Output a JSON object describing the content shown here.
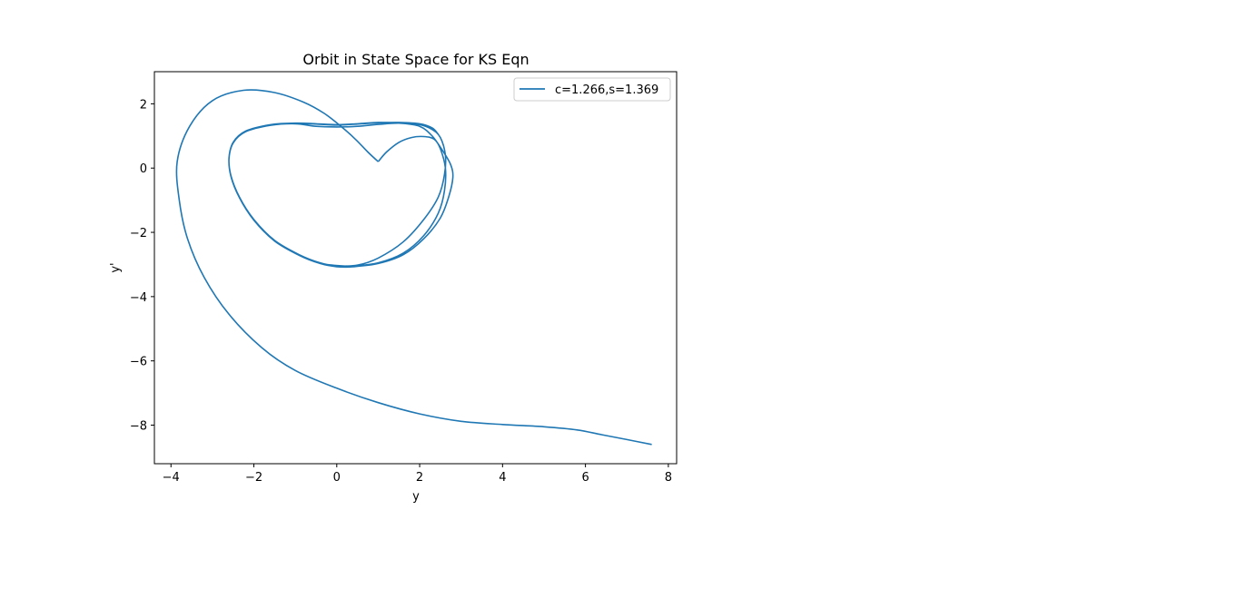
{
  "chart_data": {
    "type": "line",
    "title": "Orbit in State Space for KS Eqn",
    "xlabel": "y",
    "ylabel": "y'",
    "xlim": [
      -4.4,
      8.2
    ],
    "ylim": [
      -9.2,
      3.0
    ],
    "xticks": [
      -4,
      -2,
      0,
      2,
      4,
      6,
      8
    ],
    "yticks": [
      -8,
      -6,
      -4,
      -2,
      0,
      2
    ],
    "xtick_labels": [
      "−4",
      "−2",
      "0",
      "2",
      "4",
      "6",
      "8"
    ],
    "ytick_labels": [
      "−8",
      "−6",
      "−4",
      "−2",
      "0",
      "2"
    ],
    "grid": false,
    "legend_position": "top-right",
    "series": [
      {
        "name": "c=1.266,s=1.369",
        "color": "#1f77b4",
        "x": [
          1.0,
          0.75,
          0.45,
          0.1,
          -0.3,
          -0.8,
          -1.5,
          -2.25,
          -3.0,
          -3.55,
          -3.85,
          -3.8,
          -3.6,
          -3.2,
          -2.6,
          -1.8,
          -1.0,
          0.0,
          1.0,
          2.0,
          3.0,
          4.0,
          5.0,
          5.8,
          6.4,
          7.0,
          7.6
        ],
        "y": [
          0.2,
          0.5,
          0.9,
          1.3,
          1.7,
          2.05,
          2.35,
          2.42,
          2.1,
          1.3,
          0.2,
          -1.0,
          -2.2,
          -3.4,
          -4.55,
          -5.6,
          -6.3,
          -6.85,
          -7.3,
          -7.65,
          -7.88,
          -7.98,
          -8.05,
          -8.15,
          -8.3,
          -8.45,
          -8.6
        ]
      },
      {
        "name": "",
        "color": "#1f77b4",
        "x": [
          1.0,
          1.2,
          1.5,
          1.8,
          2.1,
          2.35,
          2.5,
          2.62,
          2.6,
          2.45,
          2.1,
          1.6,
          1.0,
          0.4,
          0.0,
          -0.4,
          -0.9,
          -1.5,
          -2.0,
          -2.35,
          -2.55,
          -2.6,
          -2.5,
          -2.2,
          -1.6,
          -1.0,
          -0.5,
          0.0,
          0.5,
          1.0,
          1.5,
          2.0,
          2.3,
          2.55,
          2.75,
          2.8,
          2.7,
          2.5,
          2.1,
          1.6,
          1.0,
          0.4,
          0.0,
          -0.4,
          -0.9,
          -1.5,
          -2.0,
          -2.35,
          -2.55,
          -2.6,
          -2.5,
          -2.2,
          -1.6,
          -1.0,
          -0.5,
          0.0,
          0.5,
          1.0,
          1.5,
          2.0,
          2.3,
          2.5,
          2.62,
          2.6,
          2.45,
          2.1,
          1.6,
          1.0,
          0.5,
          0.1,
          -0.4,
          -0.9,
          -1.5,
          -2.0,
          -2.35,
          -2.55,
          -2.6,
          -2.5,
          -2.2,
          -1.6,
          -1.0,
          -0.5,
          0.0,
          0.5,
          1.0,
          1.5,
          2.0,
          2.3,
          2.45
        ],
        "y": [
          0.2,
          0.5,
          0.8,
          0.95,
          0.98,
          0.9,
          0.6,
          0.0,
          -0.7,
          -1.4,
          -2.1,
          -2.65,
          -2.95,
          -3.05,
          -3.05,
          -2.95,
          -2.7,
          -2.25,
          -1.6,
          -0.9,
          -0.25,
          0.3,
          0.8,
          1.15,
          1.35,
          1.4,
          1.38,
          1.35,
          1.38,
          1.42,
          1.4,
          1.3,
          1.0,
          0.55,
          0.1,
          -0.3,
          -0.9,
          -1.55,
          -2.2,
          -2.7,
          -2.97,
          -3.07,
          -3.07,
          -2.97,
          -2.72,
          -2.27,
          -1.62,
          -0.92,
          -0.27,
          0.28,
          0.78,
          1.13,
          1.33,
          1.38,
          1.3,
          1.28,
          1.3,
          1.36,
          1.4,
          1.35,
          1.2,
          0.95,
          0.4,
          -0.2,
          -0.9,
          -1.6,
          -2.3,
          -2.8,
          -3.02,
          -3.04,
          -2.96,
          -2.71,
          -2.26,
          -1.61,
          -0.91,
          -0.26,
          0.29,
          0.79,
          1.14,
          1.34,
          1.39,
          1.37,
          1.34,
          1.37,
          1.41,
          1.42,
          1.38,
          1.25,
          1.05
        ]
      }
    ]
  }
}
